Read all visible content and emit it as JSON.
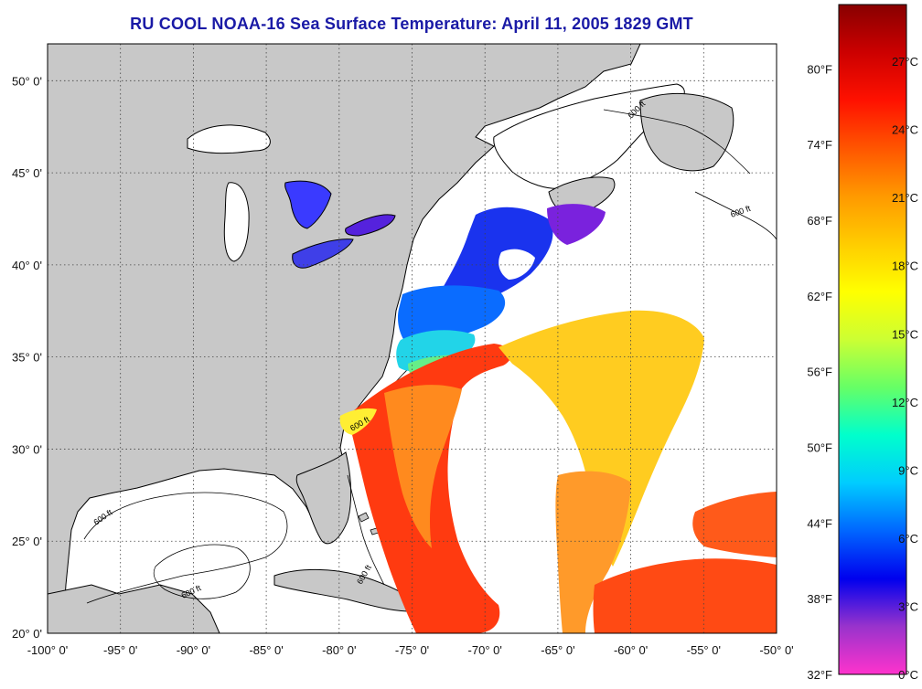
{
  "title": "RU COOL  NOAA-16  Sea Surface Temperature:  April 11, 2005 1829 GMT",
  "colors": {
    "land": "#c8c8c8",
    "water_nodata": "#ffffff",
    "grid": "#444444",
    "title": "#1a1aa6"
  },
  "map": {
    "lon_range": [
      -100,
      -50
    ],
    "lat_range": [
      20,
      52
    ],
    "x_ticks": [
      "-100° 0'",
      "-95° 0'",
      "-90° 0'",
      "-85° 0'",
      "-80° 0'",
      "-75° 0'",
      "-70° 0'",
      "-65° 0'",
      "-60° 0'",
      "-55° 0'",
      "-50° 0'"
    ],
    "y_ticks": [
      "50° 0'",
      "45° 0'",
      "40° 0'",
      "35° 0'",
      "30° 0'",
      "25° 0'",
      "20° 0'"
    ],
    "depth_contour_label": "600 ft"
  },
  "colorbar": {
    "celsius_labels": [
      "27°C",
      "24°C",
      "21°C",
      "18°C",
      "15°C",
      "12°C",
      "9°C",
      "6°C",
      "3°C",
      "0°C"
    ],
    "fahrenheit_labels": [
      "80°F",
      "74°F",
      "68°F",
      "62°F",
      "56°F",
      "50°F",
      "44°F",
      "38°F",
      "32°F"
    ],
    "colors": [
      "#ff33cc",
      "#9933cc",
      "#0000ee",
      "#0066ff",
      "#00ccff",
      "#00ffcc",
      "#66ff66",
      "#ccff33",
      "#ffff00",
      "#ffcc00",
      "#ff9900",
      "#ff5500",
      "#ff1100",
      "#cc0000",
      "#880000"
    ]
  }
}
